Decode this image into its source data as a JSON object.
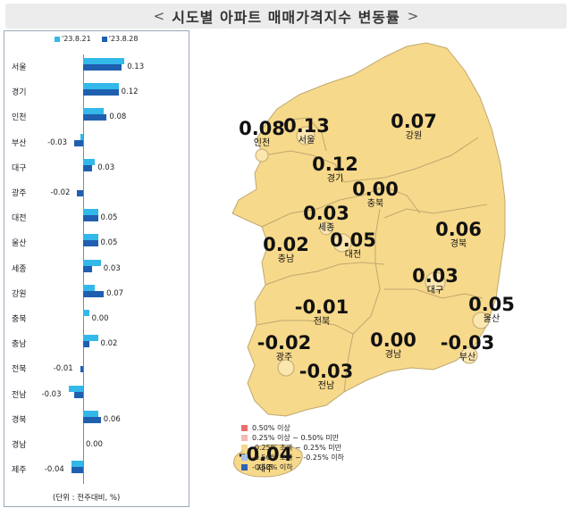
{
  "title": "시도별 아파트 매매가격지수 변동률",
  "title_left_chevron": "<",
  "title_right_chevron": ">",
  "chart_data": {
    "type": "bar",
    "orientation": "horizontal",
    "categories": [
      "서울",
      "경기",
      "인천",
      "부산",
      "대구",
      "광주",
      "대전",
      "울산",
      "세종",
      "강원",
      "충북",
      "충남",
      "전북",
      "전남",
      "경북",
      "경남",
      "제주"
    ],
    "series": [
      {
        "name": "'23.8.21",
        "color": "#33b8ea",
        "values": [
          0.14,
          0.12,
          0.07,
          -0.01,
          0.04,
          0.0,
          0.05,
          0.05,
          0.06,
          0.04,
          0.02,
          0.05,
          0.0,
          -0.05,
          0.05,
          0.0,
          -0.04
        ]
      },
      {
        "name": "'23.8.28",
        "color": "#1f5fb0",
        "values": [
          0.13,
          0.12,
          0.08,
          -0.03,
          0.03,
          -0.02,
          0.05,
          0.05,
          0.03,
          0.07,
          0.0,
          0.02,
          -0.01,
          -0.03,
          0.06,
          0.0,
          -0.04
        ]
      }
    ],
    "labeled_series": "'23.8.28",
    "data_labels": [
      "0.13",
      "0.12",
      "0.08",
      "-0.03",
      "0.03",
      "-0.02",
      "0.05",
      "0.05",
      "0.03",
      "0.07",
      "0.00",
      "0.02",
      "-0.01",
      "-0.03",
      "0.06",
      "0.00",
      "-0.04"
    ],
    "unit_note": "(단위 : 전주대비, %)"
  },
  "map": {
    "regions": [
      {
        "id": "incheon",
        "name": "인천",
        "value": "0.08"
      },
      {
        "id": "seoul",
        "name": "서울",
        "value": "0.13"
      },
      {
        "id": "gyeonggi",
        "name": "경기",
        "value": "0.12"
      },
      {
        "id": "gangwon",
        "name": "강원",
        "value": "0.07"
      },
      {
        "id": "chungbuk",
        "name": "충북",
        "value": "0.00"
      },
      {
        "id": "sejong",
        "name": "세종",
        "value": "0.03"
      },
      {
        "id": "chungnam",
        "name": "충남",
        "value": "0.02"
      },
      {
        "id": "daejeon",
        "name": "대전",
        "value": "0.05"
      },
      {
        "id": "gyeongbuk",
        "name": "경북",
        "value": "0.06"
      },
      {
        "id": "daegu",
        "name": "대구",
        "value": "0.03"
      },
      {
        "id": "ulsan",
        "name": "울산",
        "value": "0.05"
      },
      {
        "id": "jeonbuk",
        "name": "전북",
        "value": "-0.01"
      },
      {
        "id": "gwangju",
        "name": "광주",
        "value": "-0.02"
      },
      {
        "id": "gyeongnam",
        "name": "경남",
        "value": "0.00"
      },
      {
        "id": "busan",
        "name": "부산",
        "value": "-0.03"
      },
      {
        "id": "jeonnam",
        "name": "전남",
        "value": "-0.03"
      },
      {
        "id": "jeju",
        "name": "제주",
        "value": "-0.04"
      }
    ],
    "fill_color": "#f7d98b",
    "legend": [
      {
        "label": "0.50% 이상",
        "color": "#e8706e"
      },
      {
        "label": "0.25% 이상 ~ 0.50% 미만",
        "color": "#f4b9b4"
      },
      {
        "label": "-0.25% 초과 ~ 0.25% 미만",
        "color": "#f7d98b"
      },
      {
        "label": "-0.50% 초과 ~ -0.25% 이하",
        "color": "#a9bfe6"
      },
      {
        "label": "-0.50% 이하",
        "color": "#2f62b8"
      }
    ]
  }
}
